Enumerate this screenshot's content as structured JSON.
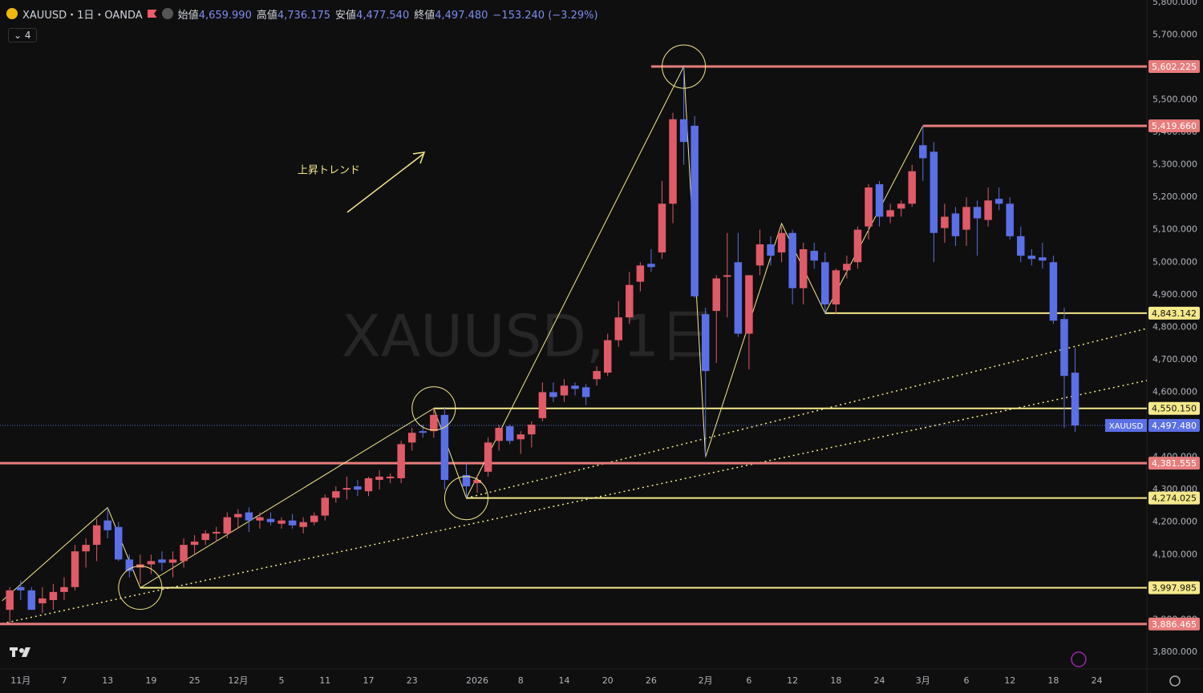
{
  "header": {
    "symbol": "XAUUSD・1日・OANDA",
    "open_label": "始値",
    "open": "4,659.990",
    "high_label": "高値",
    "high": "4,736.175",
    "low_label": "安値",
    "low": "4,477.540",
    "close_label": "終値",
    "close": "4,497.480",
    "change": "−153.240 (−3.29%)",
    "indicator_count": "4"
  },
  "chart_data": {
    "type": "candlestick",
    "watermark": "XAUUSD, 1日",
    "annotation": "上昇トレンド",
    "up_color": "#e05a67",
    "down_color": "#5b6fe6",
    "x": [
      0,
      1,
      2,
      3,
      4,
      5,
      6,
      7,
      8,
      9,
      10,
      11,
      12,
      13,
      14,
      15,
      16,
      17,
      18,
      19,
      20,
      21,
      22,
      23,
      24,
      25,
      26,
      27,
      28,
      29,
      30,
      31,
      32,
      33,
      34,
      35,
      36,
      37,
      38,
      39,
      40,
      42,
      43,
      44,
      45,
      46,
      47,
      48,
      49,
      50,
      51,
      52,
      53,
      54,
      55,
      56,
      57,
      58,
      59,
      60,
      61,
      62,
      63,
      64,
      65,
      66,
      67,
      68,
      69,
      70,
      71,
      72,
      73,
      74,
      75,
      76,
      77,
      78,
      79,
      80,
      81,
      82,
      83,
      84,
      85,
      86,
      87,
      88,
      89,
      90,
      91,
      92,
      93,
      94,
      95,
      96,
      97,
      98
    ],
    "open": [
      3930,
      4000,
      3990,
      3950,
      3960,
      3985,
      4000,
      4110,
      4130,
      4205,
      4185,
      4085,
      4060,
      4070,
      4085,
      4075,
      4080,
      4130,
      4145,
      4165,
      4165,
      4215,
      4230,
      4205,
      4210,
      4195,
      4205,
      4185,
      4200,
      4220,
      4275,
      4300,
      4310,
      4295,
      4330,
      4335,
      4335,
      4445,
      4480,
      4480,
      4530,
      4345,
      4320,
      4355,
      4450,
      4495,
      4455,
      4470,
      4520,
      4600,
      4590,
      4620,
      4615,
      4640,
      4660,
      4760,
      4830,
      4940,
      4995,
      5030,
      5180,
      5440,
      5420,
      4840,
      4850,
      4955,
      5000,
      4780,
      4990,
      5055,
      5030,
      5090,
      4920,
      5035,
      5000,
      4870,
      4975,
      5000,
      5110,
      5240,
      5140,
      5165,
      5180,
      5360,
      5340,
      5105,
      5150,
      5100,
      5170,
      5130,
      5195,
      5180,
      5080,
      5020,
      5015,
      5000,
      4825,
      4659.99
    ],
    "high": [
      4000,
      4020,
      4000,
      4000,
      4010,
      4030,
      4130,
      4150,
      4210,
      4245,
      4200,
      4100,
      4100,
      4100,
      4110,
      4110,
      4150,
      4160,
      4175,
      4185,
      4230,
      4240,
      4245,
      4230,
      4230,
      4215,
      4225,
      4215,
      4230,
      4285,
      4310,
      4340,
      4330,
      4340,
      4360,
      4350,
      4450,
      4490,
      4500,
      4550,
      4555,
      4380,
      4345,
      4460,
      4500,
      4500,
      4480,
      4510,
      4630,
      4630,
      4640,
      4630,
      4625,
      4680,
      4780,
      4880,
      4970,
      5000,
      5040,
      5250,
      5460,
      5602,
      5450,
      4860,
      4960,
      5090,
      5090,
      4960,
      5100,
      5080,
      5110,
      5100,
      5060,
      5060,
      5030,
      4980,
      5020,
      5110,
      5240,
      5250,
      5180,
      5190,
      5300,
      5419.66,
      5370,
      5180,
      5170,
      5200,
      5190,
      5230,
      5230,
      5200,
      5110,
      5040,
      5060,
      5020,
      4860,
      4736.175
    ],
    "low": [
      3890,
      3960,
      3930,
      3920,
      3930,
      3960,
      3990,
      4060,
      4080,
      4150,
      4080,
      4030,
      4010,
      4040,
      4050,
      4030,
      4060,
      4100,
      4130,
      4140,
      4150,
      4180,
      4170,
      4180,
      4190,
      4180,
      4180,
      4165,
      4190,
      4205,
      4260,
      4270,
      4280,
      4280,
      4300,
      4320,
      4320,
      4420,
      4460,
      4460,
      4300,
      4275,
      4290,
      4340,
      4420,
      4440,
      4410,
      4430,
      4510,
      4570,
      4570,
      4590,
      4560,
      4620,
      4650,
      4740,
      4810,
      4910,
      4970,
      5010,
      5120,
      5300,
      4890,
      4400,
      4690,
      4830,
      4770,
      4670,
      4960,
      4990,
      5000,
      4870,
      4870,
      4980,
      4840,
      4840,
      4950,
      4980,
      5070,
      5110,
      5120,
      5140,
      5170,
      5250,
      5000,
      5060,
      5050,
      5050,
      5020,
      5110,
      5160,
      5070,
      5000,
      4990,
      4980,
      4810,
      4490,
      4477.54
    ],
    "close": [
      3990,
      3990,
      3930,
      3965,
      3985,
      4000,
      4110,
      4130,
      4190,
      4175,
      4085,
      4050,
      4070,
      4080,
      4075,
      4085,
      4130,
      4140,
      4165,
      4170,
      4215,
      4225,
      4205,
      4215,
      4200,
      4205,
      4190,
      4200,
      4220,
      4275,
      4295,
      4305,
      4300,
      4335,
      4340,
      4340,
      4440,
      4475,
      4475,
      4530,
      4330,
      4310,
      4330,
      4445,
      4490,
      4450,
      4470,
      4500,
      4600,
      4585,
      4620,
      4610,
      4585,
      4665,
      4760,
      4830,
      4930,
      4990,
      4985,
      5180,
      5440,
      5370,
      4895,
      4665,
      4950,
      4960,
      4780,
      4960,
      5055,
      5020,
      5090,
      4920,
      5040,
      5005,
      4870,
      4975,
      4995,
      5100,
      5230,
      5140,
      5160,
      5180,
      5280,
      5320,
      5090,
      5140,
      5080,
      5170,
      5135,
      5190,
      5180,
      5080,
      5020,
      5010,
      5005,
      4820,
      4650,
      4497.48
    ],
    "xlim": [
      -0.9,
      104.6
    ],
    "xticks": [
      {
        "value": 1,
        "label": "11月"
      },
      {
        "value": 5,
        "label": "7"
      },
      {
        "value": 9,
        "label": "13"
      },
      {
        "value": 13,
        "label": "19"
      },
      {
        "value": 17,
        "label": "25"
      },
      {
        "value": 21,
        "label": "12月"
      },
      {
        "value": 25,
        "label": "5"
      },
      {
        "value": 29,
        "label": "11"
      },
      {
        "value": 33,
        "label": "17"
      },
      {
        "value": 37,
        "label": "23"
      },
      {
        "value": 43,
        "label": "2026"
      },
      {
        "value": 47,
        "label": "8"
      },
      {
        "value": 51,
        "label": "14"
      },
      {
        "value": 55,
        "label": "20"
      },
      {
        "value": 59,
        "label": "26"
      },
      {
        "value": 64,
        "label": "2月"
      },
      {
        "value": 68,
        "label": "6"
      },
      {
        "value": 72,
        "label": "12"
      },
      {
        "value": 76,
        "label": "18"
      },
      {
        "value": 80,
        "label": "24"
      },
      {
        "value": 84,
        "label": "3月"
      },
      {
        "value": 88,
        "label": "6"
      },
      {
        "value": 92,
        "label": "12"
      },
      {
        "value": 96,
        "label": "18"
      },
      {
        "value": 100,
        "label": "24"
      }
    ],
    "ylim": [
      3748,
      5807
    ],
    "yticks": [
      {
        "value": 3800,
        "label": "3,800.000"
      },
      {
        "value": 3900,
        "label": "3,900.000"
      },
      {
        "value": 4000,
        "label": "4,000.000"
      },
      {
        "value": 4100,
        "label": "4,100.000"
      },
      {
        "value": 4200,
        "label": "4,200.000"
      },
      {
        "value": 4300,
        "label": "4,300.000"
      },
      {
        "value": 4400,
        "label": "4,400.000"
      },
      {
        "value": 4500,
        "label": "4,500.000"
      },
      {
        "value": 4600,
        "label": "4,600.000"
      },
      {
        "value": 4700,
        "label": "4,700.000"
      },
      {
        "value": 4800,
        "label": "4,800.000"
      },
      {
        "value": 4900,
        "label": "4,900.000"
      },
      {
        "value": 5000,
        "label": "5,000.000"
      },
      {
        "value": 5100,
        "label": "5,100.000"
      },
      {
        "value": 5200,
        "label": "5,200.000"
      },
      {
        "value": 5300,
        "label": "5,300.000"
      },
      {
        "value": 5400,
        "label": "5,400.000"
      },
      {
        "value": 5500,
        "label": "5,500.000"
      },
      {
        "value": 5600,
        "label": "5,600.000"
      },
      {
        "value": 5700,
        "label": "5,700.000"
      },
      {
        "value": 5800,
        "label": "5,800.000"
      }
    ],
    "levels": [
      {
        "value": 5602.225,
        "label": "5,602.225",
        "color": "#e87c7c",
        "from": 59
      },
      {
        "value": 5419.66,
        "label": "5,419.660",
        "color": "#e87c7c",
        "from": 84
      },
      {
        "value": 4843.142,
        "label": "4,843.142",
        "color": "#f5e98a",
        "from": 75
      },
      {
        "value": 4550.15,
        "label": "4,550.150",
        "color": "#f5e98a",
        "from": 39
      },
      {
        "value": 4381.555,
        "label": "4,381.555",
        "color": "#e87c7c",
        "from": -0.9
      },
      {
        "value": 4274.025,
        "label": "4,274.025",
        "color": "#f5e98a",
        "from": 42
      },
      {
        "value": 3997.985,
        "label": "3,997.985",
        "color": "#f5e98a",
        "from": 12
      },
      {
        "value": 3886.465,
        "label": "3,886.465",
        "color": "#e87c7c",
        "from": -0.9
      }
    ],
    "last_price": {
      "name": "XAUUSD",
      "value": 4497.48,
      "label": "4,497.480",
      "color": "#5b6fe6"
    },
    "zigzag": {
      "x": [
        -0.7,
        9,
        12,
        39,
        42,
        62,
        64,
        71,
        75,
        84
      ],
      "y": [
        3958,
        4245,
        3998,
        4550,
        4274,
        5602,
        4400,
        5119,
        4843,
        5419.66
      ],
      "color": "#f5e98a"
    },
    "trendlines": [
      {
        "x": [
          -0.7,
          104.6
        ],
        "y": [
          3888,
          4636
        ]
      },
      {
        "x": [
          42,
          104.6
        ],
        "y": [
          4274,
          4796
        ]
      }
    ],
    "circles": {
      "x": [
        12,
        39,
        42,
        62
      ],
      "y": [
        3998,
        4550,
        4274,
        5602
      ]
    }
  }
}
